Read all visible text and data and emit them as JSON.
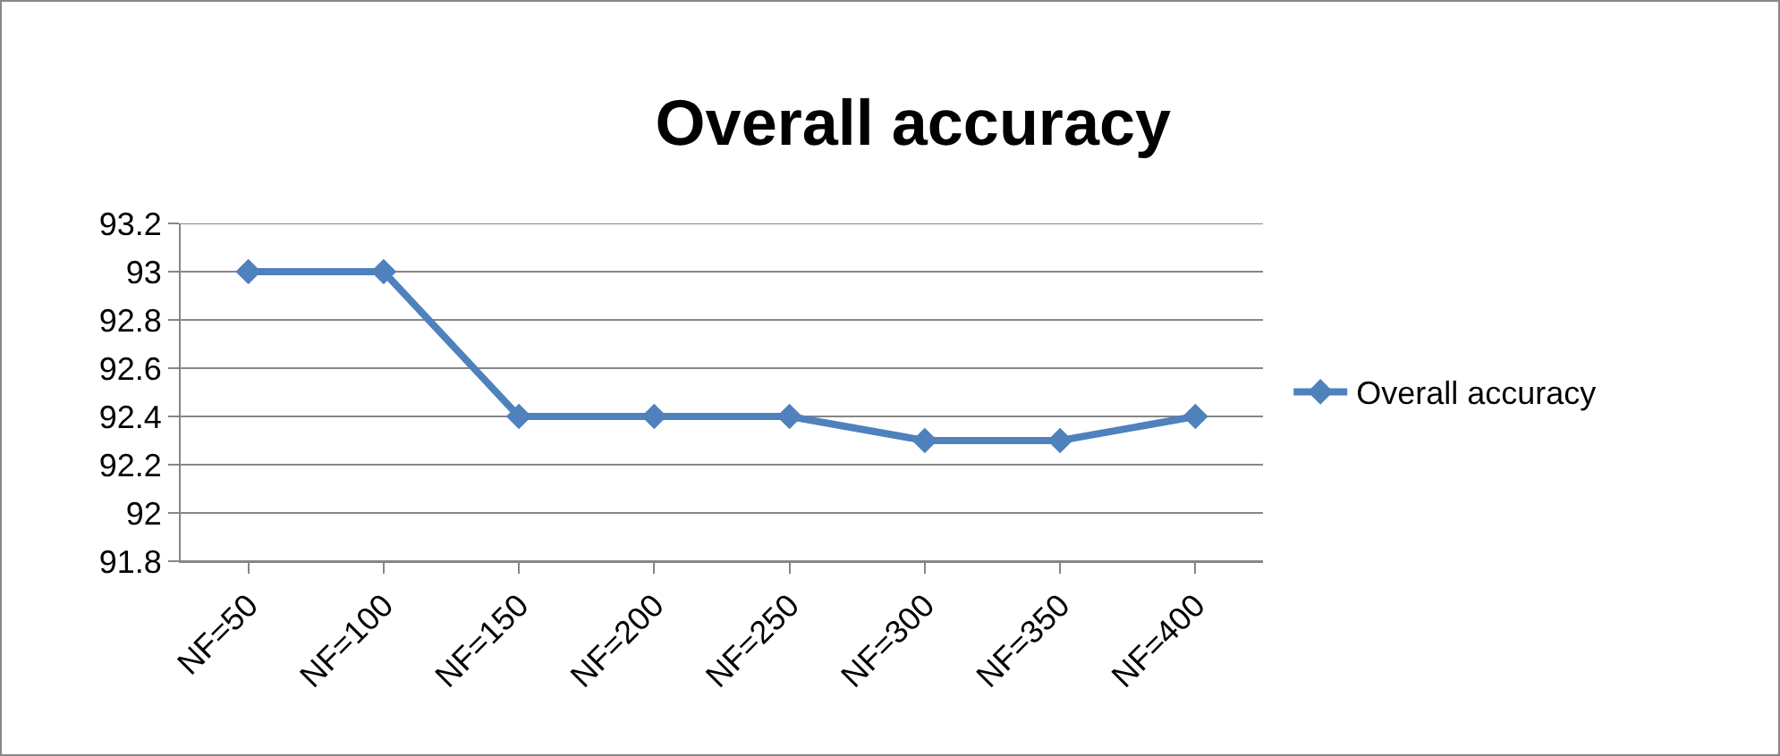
{
  "chart_data": {
    "type": "line",
    "title": "Overall accuracy",
    "categories": [
      "NF=50",
      "NF=100",
      "NF=150",
      "NF=200",
      "NF=250",
      "NF=300",
      "NF=350",
      "NF=400"
    ],
    "series": [
      {
        "name": "Overall accuracy",
        "color": "#4f81bd",
        "values": [
          93,
          93,
          92.4,
          92.4,
          92.4,
          92.3,
          92.3,
          92.4
        ]
      }
    ],
    "ylim": [
      91.8,
      93.2
    ],
    "yticks": [
      91.8,
      92,
      92.2,
      92.4,
      92.6,
      92.8,
      93,
      93.2
    ],
    "grid": "y",
    "legend": "right",
    "marker": "diamond",
    "line_style": "solid"
  }
}
